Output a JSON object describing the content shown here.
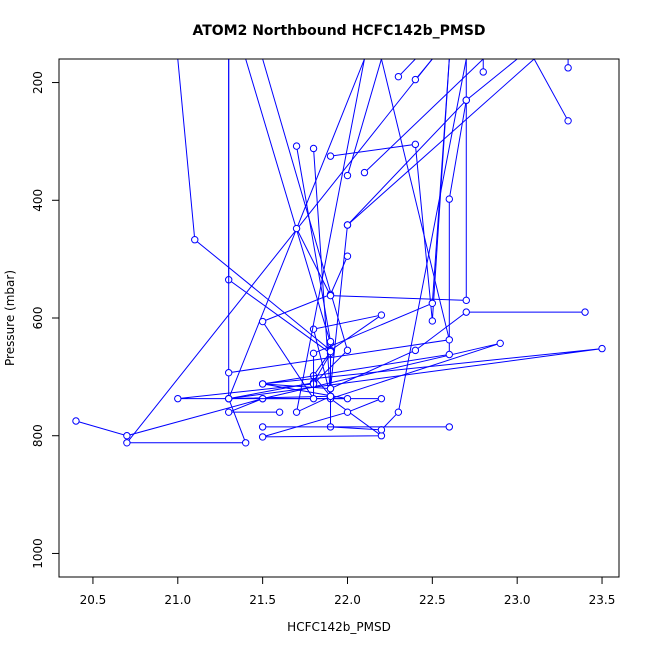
{
  "chart_data": {
    "type": "line",
    "title": "ATOM2 Northbound HCFC142b_PMSD",
    "xlabel": "HCFC142b_PMSD",
    "ylabel": "Pressure (mbar)",
    "xlim": [
      20.3,
      23.6
    ],
    "ylim": [
      1040,
      160
    ],
    "y_inverted": true,
    "grid": false,
    "line_color": "#0000ff",
    "marker": "open-circle",
    "x_ticks": [
      20.5,
      21.0,
      21.5,
      22.0,
      22.5,
      23.0,
      23.5
    ],
    "x_tick_labels": [
      "20.5",
      "21.0",
      "21.5",
      "22.0",
      "22.5",
      "23.0",
      "23.5"
    ],
    "y_ticks": [
      200,
      400,
      600,
      800,
      1000
    ],
    "y_tick_labels": [
      "200",
      "400",
      "600",
      "800",
      "1000"
    ],
    "series": [
      {
        "points": [
          [
            21.0,
            160
          ],
          [
            21.1,
            467
          ],
          [
            21.9,
            655
          ],
          [
            22.2,
            595
          ],
          [
            21.8,
            619
          ],
          [
            21.9,
            733
          ],
          [
            21.3,
            737
          ],
          [
            22.1,
            160
          ]
        ]
      },
      {
        "points": [
          [
            21.3,
            160
          ],
          [
            21.3,
            535
          ],
          [
            21.9,
            660
          ],
          [
            21.8,
            710
          ],
          [
            21.3,
            737
          ],
          [
            21.4,
            812
          ],
          [
            20.7,
            812
          ],
          [
            22.5,
            160
          ]
        ]
      },
      {
        "points": [
          [
            20.4,
            775
          ],
          [
            20.7,
            800
          ],
          [
            21.5,
            737
          ],
          [
            22.9,
            643
          ],
          [
            21.9,
            737
          ],
          [
            22.2,
            800
          ],
          [
            21.5,
            802
          ],
          [
            22.0,
            760
          ],
          [
            22.2,
            737
          ],
          [
            21.5,
            737
          ],
          [
            21.3,
            760
          ],
          [
            21.6,
            760
          ]
        ]
      },
      {
        "points": [
          [
            21.4,
            160
          ],
          [
            21.9,
            643
          ],
          [
            21.9,
            733
          ],
          [
            21.7,
            760
          ],
          [
            22.1,
            160
          ]
        ]
      },
      {
        "points": [
          [
            21.5,
            160
          ],
          [
            22.0,
            655
          ],
          [
            21.8,
            712
          ],
          [
            21.0,
            737
          ],
          [
            22.0,
            737
          ],
          [
            21.5,
            712
          ],
          [
            21.9,
            720
          ],
          [
            22.4,
            655
          ],
          [
            22.7,
            590
          ],
          [
            23.4,
            590
          ]
        ]
      },
      {
        "points": [
          [
            21.7,
            308
          ],
          [
            21.9,
            640
          ],
          [
            21.9,
            785
          ],
          [
            22.2,
            790
          ],
          [
            22.3,
            760
          ],
          [
            22.7,
            160
          ]
        ]
      },
      {
        "points": [
          [
            21.8,
            312
          ],
          [
            21.9,
            733
          ],
          [
            21.8,
            698
          ],
          [
            21.9,
            657
          ],
          [
            21.9,
            720
          ],
          [
            22.0,
            442
          ],
          [
            22.7,
            230
          ],
          [
            23.0,
            160
          ]
        ]
      },
      {
        "points": [
          [
            21.9,
            325
          ],
          [
            22.4,
            305
          ],
          [
            22.5,
            605
          ],
          [
            22.6,
            160
          ]
        ]
      },
      {
        "points": [
          [
            22.0,
            358
          ],
          [
            22.2,
            160
          ]
        ]
      },
      {
        "points": [
          [
            22.1,
            353
          ],
          [
            22.8,
            160
          ]
        ]
      },
      {
        "points": [
          [
            22.0,
            442
          ],
          [
            23.1,
            160
          ]
        ]
      },
      {
        "points": [
          [
            22.0,
            495
          ],
          [
            21.9,
            560
          ],
          [
            21.5,
            606
          ],
          [
            21.8,
            737
          ],
          [
            21.8,
            660
          ],
          [
            22.5,
            575
          ],
          [
            22.6,
            160
          ]
        ]
      },
      {
        "points": [
          [
            21.7,
            448
          ],
          [
            21.9,
            562
          ],
          [
            22.7,
            570
          ],
          [
            22.7,
            160
          ]
        ]
      },
      {
        "points": [
          [
            22.3,
            190
          ],
          [
            22.4,
            160
          ]
        ]
      },
      {
        "points": [
          [
            22.4,
            195
          ],
          [
            22.5,
            160
          ]
        ]
      },
      {
        "points": [
          [
            22.7,
            230
          ],
          [
            22.6,
            398
          ],
          [
            22.6,
            662
          ],
          [
            21.5,
            712
          ],
          [
            23.5,
            652
          ],
          [
            21.3,
            737
          ],
          [
            21.3,
            160
          ]
        ]
      },
      {
        "points": [
          [
            22.8,
            182
          ],
          [
            22.8,
            160
          ]
        ]
      },
      {
        "points": [
          [
            23.3,
            175
          ],
          [
            23.3,
            160
          ]
        ]
      },
      {
        "points": [
          [
            23.3,
            265
          ],
          [
            23.1,
            160
          ]
        ]
      },
      {
        "points": [
          [
            21.5,
            785
          ],
          [
            22.6,
            785
          ]
        ]
      },
      {
        "points": [
          [
            21.3,
            693
          ],
          [
            22.6,
            637
          ],
          [
            22.2,
            160
          ]
        ]
      }
    ]
  }
}
